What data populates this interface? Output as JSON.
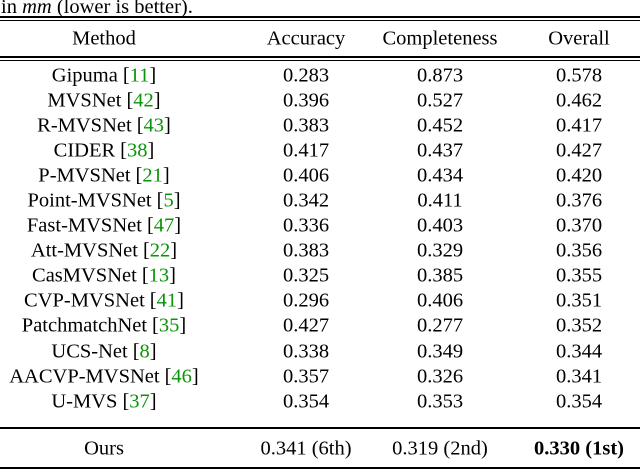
{
  "caption": {
    "prefix": "in ",
    "math": "mm",
    "suffix": " (lower is better)."
  },
  "citation": {
    "open": "[",
    "close": "]"
  },
  "colors": {
    "citation_green": "#0a9408",
    "text": "#000000",
    "background": "#ffffff"
  },
  "table": {
    "headers": [
      "Method",
      "Accuracy",
      "Completeness",
      "Overall"
    ],
    "rows": [
      {
        "method": "Gipuma",
        "cite": "11",
        "accuracy": "0.283",
        "completeness": "0.873",
        "overall": "0.578"
      },
      {
        "method": "MVSNet",
        "cite": "42",
        "accuracy": "0.396",
        "completeness": "0.527",
        "overall": "0.462"
      },
      {
        "method": "R-MVSNet",
        "cite": "43",
        "accuracy": "0.383",
        "completeness": "0.452",
        "overall": "0.417"
      },
      {
        "method": "CIDER",
        "cite": "38",
        "accuracy": "0.417",
        "completeness": "0.437",
        "overall": "0.427"
      },
      {
        "method": "P-MVSNet",
        "cite": "21",
        "accuracy": "0.406",
        "completeness": "0.434",
        "overall": "0.420"
      },
      {
        "method": "Point-MVSNet",
        "cite": "5",
        "accuracy": "0.342",
        "completeness": "0.411",
        "overall": "0.376"
      },
      {
        "method": "Fast-MVSNet",
        "cite": "47",
        "accuracy": "0.336",
        "completeness": "0.403",
        "overall": "0.370"
      },
      {
        "method": "Att-MVSNet",
        "cite": "22",
        "accuracy": "0.383",
        "completeness": "0.329",
        "overall": "0.356"
      },
      {
        "method": "CasMVSNet",
        "cite": "13",
        "accuracy": "0.325",
        "completeness": "0.385",
        "overall": "0.355"
      },
      {
        "method": "CVP-MVSNet",
        "cite": "41",
        "accuracy": "0.296",
        "completeness": "0.406",
        "overall": "0.351"
      },
      {
        "method": "PatchmatchNet",
        "cite": "35",
        "accuracy": "0.427",
        "completeness": "0.277",
        "overall": "0.352"
      },
      {
        "method": "UCS-Net",
        "cite": "8",
        "accuracy": "0.338",
        "completeness": "0.349",
        "overall": "0.344"
      },
      {
        "method": "AACVP-MVSNet",
        "cite": "46",
        "accuracy": "0.357",
        "completeness": "0.326",
        "overall": "0.341"
      },
      {
        "method": "U-MVS",
        "cite": "37",
        "accuracy": "0.354",
        "completeness": "0.353",
        "overall": "0.354"
      }
    ],
    "ours": {
      "method": "Ours",
      "accuracy": "0.341 (6th)",
      "completeness": "0.319 (2nd)",
      "overall": "0.330 (1st)"
    }
  }
}
